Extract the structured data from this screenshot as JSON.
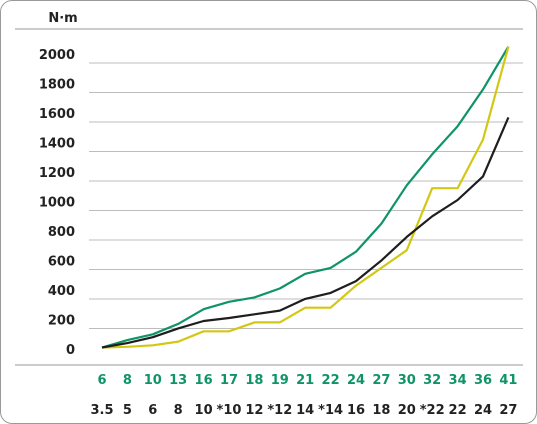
{
  "chart_data": {
    "type": "line",
    "ylabel": "N·m",
    "ylim": [
      0,
      2000
    ],
    "yticks": [
      0,
      200,
      400,
      600,
      800,
      1000,
      1200,
      1400,
      1600,
      1800,
      2000
    ],
    "x_labels_row1": [
      "6",
      "8",
      "10",
      "13",
      "16",
      "17",
      "18",
      "19",
      "21",
      "22",
      "24",
      "27",
      "30",
      "32",
      "34",
      "36",
      "41"
    ],
    "x_labels_row2": [
      "3.5",
      "5",
      "6",
      "8",
      "10",
      "*10",
      "12",
      "*12",
      "14",
      "*14",
      "16",
      "18",
      "20",
      "*22",
      "22",
      "24",
      "27"
    ],
    "grid": "horizontal",
    "colors": {
      "green": "#0f9466",
      "yellow": "#d2c814",
      "black": "#1e1e1e",
      "row1_text": "#0f9466"
    },
    "series": [
      {
        "color": "green",
        "values": [
          10,
          60,
          100,
          170,
          270,
          320,
          350,
          410,
          510,
          550,
          660,
          850,
          1110,
          1320,
          1510,
          1760,
          2050
        ]
      },
      {
        "color": "yellow",
        "values": [
          10,
          15,
          25,
          50,
          120,
          120,
          180,
          180,
          280,
          280,
          430,
          550,
          670,
          1090,
          1090,
          1420,
          2050
        ]
      },
      {
        "color": "black",
        "values": [
          10,
          40,
          80,
          140,
          190,
          210,
          235,
          260,
          340,
          380,
          460,
          600,
          760,
          900,
          1010,
          1170,
          1570
        ]
      }
    ]
  }
}
